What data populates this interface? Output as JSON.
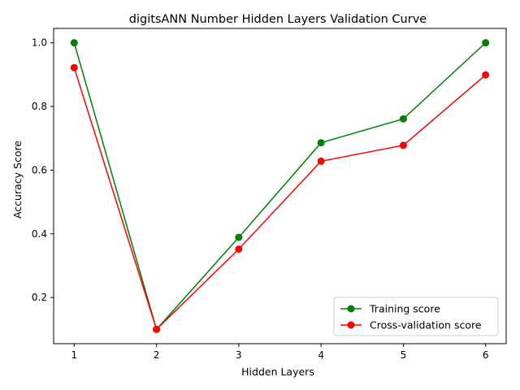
{
  "chart_data": {
    "type": "line",
    "title": "digitsANN Number Hidden Layers Validation Curve",
    "xlabel": "Hidden Layers",
    "ylabel": "Accuracy Score",
    "x": [
      1,
      2,
      3,
      4,
      5,
      6
    ],
    "x_ticks": [
      "1",
      "2",
      "3",
      "4",
      "5",
      "6"
    ],
    "y_ticks": [
      "0.2",
      "0.4",
      "0.6",
      "0.8",
      "1.0"
    ],
    "y_tick_values": [
      0.2,
      0.4,
      0.6,
      0.8,
      1.0
    ],
    "xlim": [
      0.75,
      6.25
    ],
    "ylim": [
      0.055,
      1.045
    ],
    "grid": false,
    "legend_position": "lower-right",
    "series": [
      {
        "name": "Training score",
        "color": "#008000",
        "values": [
          1.0,
          0.1,
          0.389,
          0.686,
          0.761,
          1.0
        ]
      },
      {
        "name": "Cross-validation score",
        "color": "#ff0000",
        "values": [
          0.922,
          0.1,
          0.352,
          0.628,
          0.678,
          0.899
        ]
      }
    ]
  }
}
